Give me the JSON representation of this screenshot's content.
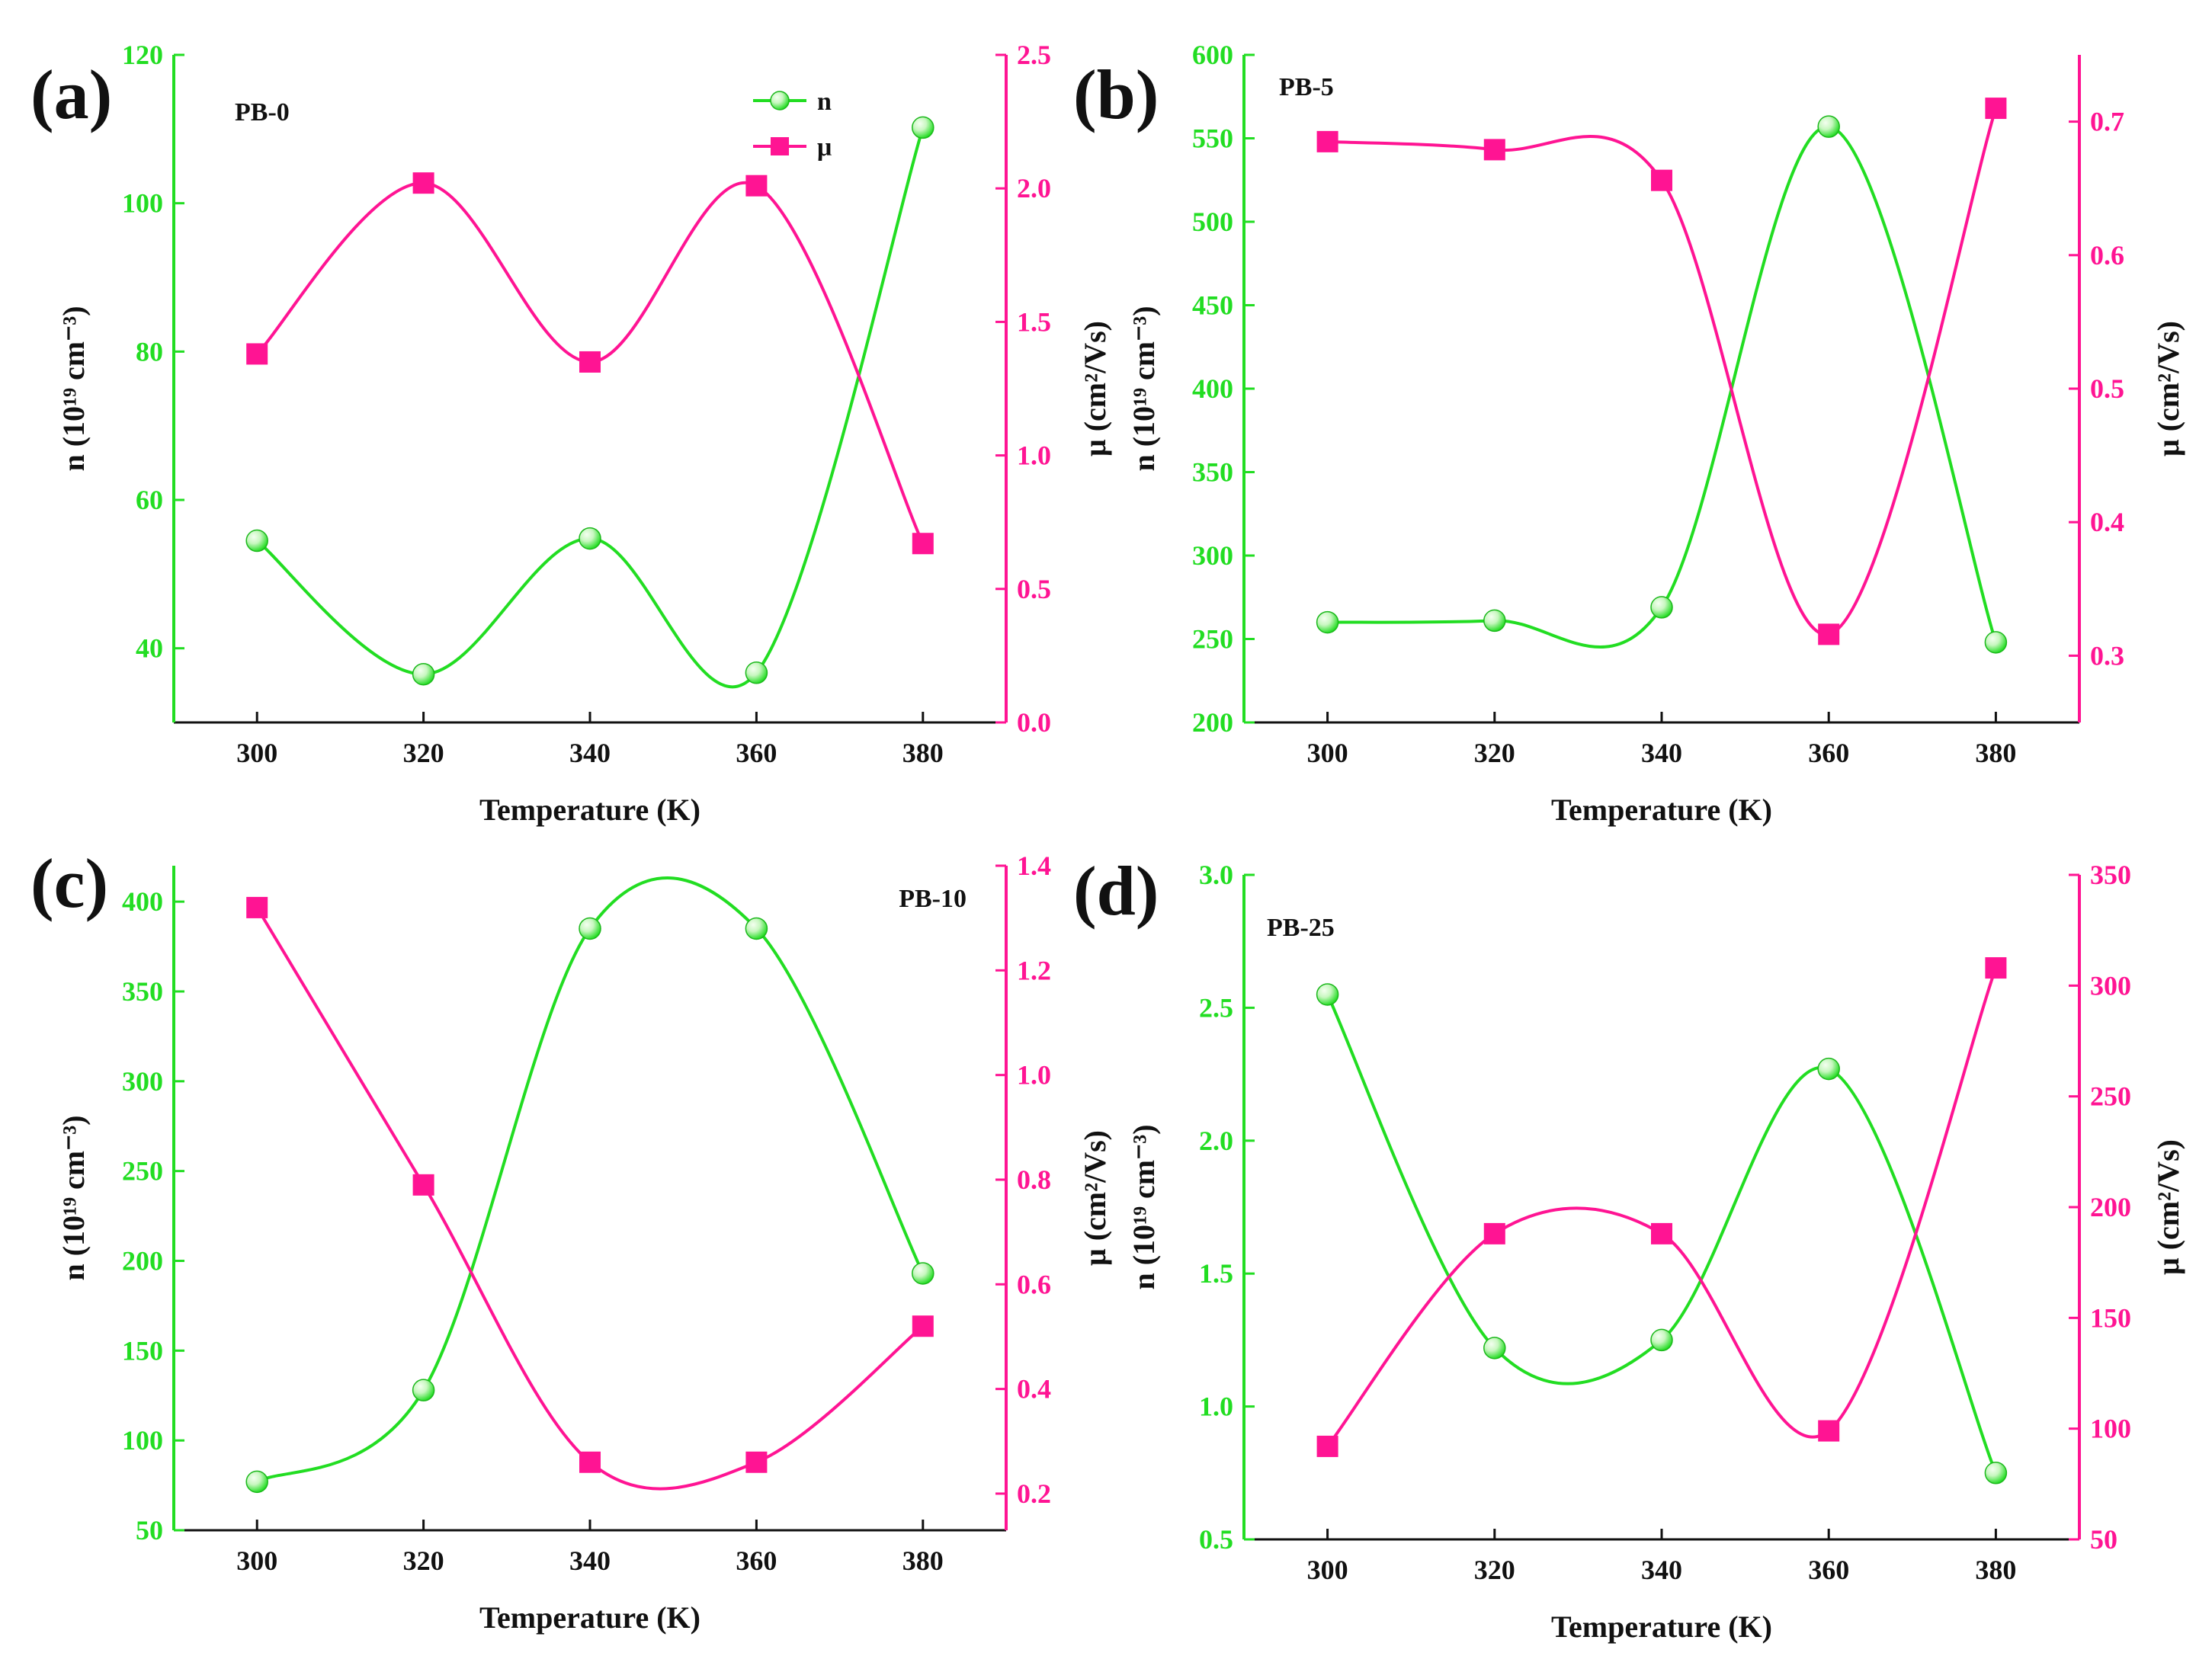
{
  "colors": {
    "n": "#22dd22",
    "mu": "#ff1493",
    "axis": "#111111",
    "n_marker_light": "#c8f7c0"
  },
  "legend": {
    "n_label": "n",
    "mu_label": "μ"
  },
  "chart_data": [
    {
      "type": "scatter",
      "panel": "(a)",
      "title": "PB-0",
      "xlabel": "Temperature (K)",
      "ylabel_left": "n (10¹⁹ cm⁻³)",
      "ylabel_right": "μ (cm²/Vs)",
      "x_ticks": [
        300,
        320,
        340,
        360,
        380
      ],
      "xlim": [
        290,
        390
      ],
      "left_ylim": [
        30,
        120
      ],
      "left_ticks": [
        40,
        60,
        80,
        100,
        120
      ],
      "left_tick_labels": [
        "40",
        "60",
        "80",
        "100",
        "120"
      ],
      "right_ylim": [
        0,
        2.5
      ],
      "right_ticks": [
        0,
        0.5,
        1.0,
        1.5,
        2.0,
        2.5
      ],
      "right_tick_labels": [
        "0.0",
        "0.5",
        "1.0",
        "1.5",
        "2.0",
        "2.5"
      ],
      "legend_position": "top-right",
      "series": [
        {
          "name": "n",
          "axis": "left",
          "x": [
            300,
            320,
            340,
            360,
            380
          ],
          "values": [
            54.5,
            36.5,
            54.8,
            36.7,
            110.2
          ]
        },
        {
          "name": "μ",
          "axis": "right",
          "x": [
            300,
            320,
            340,
            360,
            380
          ],
          "values": [
            1.38,
            2.02,
            1.35,
            2.01,
            0.67
          ]
        }
      ]
    },
    {
      "type": "scatter",
      "panel": "(b)",
      "title": "PB-5",
      "xlabel": "Temperature (K)",
      "ylabel_left": "n (10¹⁹ cm⁻³)",
      "ylabel_right": "μ (cm²/Vs)",
      "x_ticks": [
        300,
        320,
        340,
        360,
        380
      ],
      "xlim": [
        290,
        390
      ],
      "left_ylim": [
        200,
        600
      ],
      "left_ticks": [
        200,
        250,
        300,
        350,
        400,
        450,
        500,
        550,
        600
      ],
      "left_tick_labels": [
        "200",
        "250",
        "300",
        "350",
        "400",
        "450",
        "500",
        "550",
        "600"
      ],
      "right_ylim": [
        0.25,
        0.75
      ],
      "right_ticks": [
        0.3,
        0.4,
        0.5,
        0.6,
        0.7
      ],
      "right_tick_labels": [
        "0.3",
        "0.4",
        "0.5",
        "0.6",
        "0.7"
      ],
      "series": [
        {
          "name": "n",
          "axis": "left",
          "x": [
            300,
            320,
            340,
            360,
            380
          ],
          "values": [
            260,
            261,
            269,
            557,
            248
          ]
        },
        {
          "name": "μ",
          "axis": "right",
          "x": [
            300,
            320,
            340,
            360,
            380
          ],
          "values": [
            0.685,
            0.679,
            0.656,
            0.316,
            0.71
          ]
        }
      ]
    },
    {
      "type": "scatter",
      "panel": "(c)",
      "title": "PB-10",
      "xlabel": "Temperature (K)",
      "ylabel_left": "n (10¹⁹ cm⁻³)",
      "ylabel_right": "μ (cm²/Vs)",
      "x_ticks": [
        300,
        320,
        340,
        360,
        380
      ],
      "xlim": [
        290,
        390
      ],
      "left_ylim": [
        50,
        420
      ],
      "left_ticks": [
        50,
        100,
        150,
        200,
        250,
        300,
        350,
        400
      ],
      "left_tick_labels": [
        "50",
        "100",
        "150",
        "200",
        "250",
        "300",
        "350",
        "400"
      ],
      "right_ylim": [
        0.13,
        1.4
      ],
      "right_ticks": [
        0.2,
        0.4,
        0.6,
        0.8,
        1.0,
        1.2,
        1.4
      ],
      "right_tick_labels": [
        "0.2",
        "0.4",
        "0.6",
        "0.8",
        "1.0",
        "1.2",
        "1.4"
      ],
      "series": [
        {
          "name": "n",
          "axis": "left",
          "x": [
            300,
            320,
            340,
            360,
            380
          ],
          "values": [
            77,
            128,
            385,
            385,
            193
          ]
        },
        {
          "name": "μ",
          "axis": "right",
          "x": [
            300,
            320,
            340,
            360,
            380
          ],
          "values": [
            1.32,
            0.79,
            0.26,
            0.26,
            0.52
          ]
        }
      ]
    },
    {
      "type": "scatter",
      "panel": "(d)",
      "title": "PB-25",
      "xlabel": "Temperature (K)",
      "ylabel_left": "n (10¹⁹ cm⁻³)",
      "ylabel_right": "μ (cm²/Vs)",
      "x_ticks": [
        300,
        320,
        340,
        360,
        380
      ],
      "xlim": [
        290,
        390
      ],
      "left_ylim": [
        0.5,
        3.0
      ],
      "left_ticks": [
        0.5,
        1.0,
        1.5,
        2.0,
        2.5,
        3.0
      ],
      "left_tick_labels": [
        "0.5",
        "1.0",
        "1.5",
        "2.0",
        "2.5",
        "3.0"
      ],
      "right_ylim": [
        50,
        350
      ],
      "right_ticks": [
        50,
        100,
        150,
        200,
        250,
        300,
        350
      ],
      "right_tick_labels": [
        "50",
        "100",
        "150",
        "200",
        "250",
        "300",
        "350"
      ],
      "series": [
        {
          "name": "n",
          "axis": "left",
          "x": [
            300,
            320,
            340,
            360,
            380
          ],
          "values": [
            2.55,
            1.22,
            1.25,
            2.27,
            0.75
          ]
        },
        {
          "name": "μ",
          "axis": "right",
          "x": [
            300,
            320,
            340,
            360,
            380
          ],
          "values": [
            92,
            188,
            188,
            99,
            308
          ]
        }
      ]
    }
  ]
}
